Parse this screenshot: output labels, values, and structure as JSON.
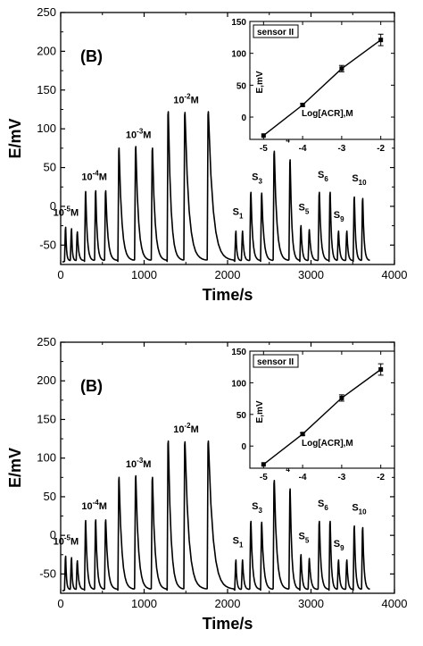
{
  "chart_data": [
    {
      "type": "line",
      "panel_label": "(B)",
      "xlabel": "Time/s",
      "ylabel": "E/mV",
      "xlim": [
        0,
        4000
      ],
      "ylim": [
        -75,
        250
      ],
      "xticks": [
        "0",
        "1000",
        "2000",
        "3000",
        "4000"
      ],
      "yticks": [
        "-50",
        "0",
        "50",
        "100",
        "150",
        "200",
        "250"
      ],
      "series": [
        {
          "peaks": [
            {
              "t": 60,
              "v": -27
            },
            {
              "t": 130,
              "v": -29
            },
            {
              "t": 200,
              "v": -33
            },
            {
              "t": 300,
              "v": 19
            },
            {
              "t": 420,
              "v": 20
            },
            {
              "t": 540,
              "v": 20
            },
            {
              "t": 700,
              "v": 75
            },
            {
              "t": 900,
              "v": 77
            },
            {
              "t": 1100,
              "v": 75
            },
            {
              "t": 1290,
              "v": 122
            },
            {
              "t": 1490,
              "v": 121
            },
            {
              "t": 1770,
              "v": 122
            },
            {
              "t": 2100,
              "v": -32
            },
            {
              "t": 2180,
              "v": -32
            },
            {
              "t": 2280,
              "v": 18
            },
            {
              "t": 2410,
              "v": 17
            },
            {
              "t": 2560,
              "v": 71
            },
            {
              "t": 2750,
              "v": 60
            },
            {
              "t": 2880,
              "v": -25
            },
            {
              "t": 2980,
              "v": -30
            },
            {
              "t": 3100,
              "v": 18
            },
            {
              "t": 3230,
              "v": 18
            },
            {
              "t": 3330,
              "v": -32
            },
            {
              "t": 3430,
              "v": -32
            },
            {
              "t": 3520,
              "v": 12
            },
            {
              "t": 3620,
              "v": 10
            }
          ],
          "baseline": -70
        }
      ],
      "annotations": [
        {
          "text": "10",
          "sup": "-5",
          "suffix": "M",
          "t": -90,
          "v": -12
        },
        {
          "text": "10",
          "sup": "-4",
          "suffix": "M",
          "t": 250,
          "v": 34
        },
        {
          "text": "10",
          "sup": "-3",
          "suffix": "M",
          "t": 780,
          "v": 88
        },
        {
          "text": "10",
          "sup": "-2",
          "suffix": "M",
          "t": 1350,
          "v": 133
        },
        {
          "text": "S",
          "sub": "1",
          "t": 2060,
          "v": -11
        },
        {
          "text": "S",
          "sub": "3",
          "t": 2290,
          "v": 34
        },
        {
          "text": "S",
          "sub": "4",
          "t": 2620,
          "v": 87
        },
        {
          "text": "S",
          "sub": "5",
          "t": 2850,
          "v": -5
        },
        {
          "text": "S",
          "sub": "6",
          "t": 3080,
          "v": 37
        },
        {
          "text": "S",
          "sub": "9",
          "t": 3270,
          "v": -15
        },
        {
          "text": "S",
          "sub": "10",
          "t": 3490,
          "v": 32
        }
      ],
      "inset": {
        "title": "sensor II",
        "xlabel": "Log[ACR],M",
        "ylabel": "E,mV",
        "xlim": [
          -5.35,
          -1.65
        ],
        "ylim": [
          -35,
          150
        ],
        "xticks": [
          "-5",
          "-4",
          "-3",
          "-2"
        ],
        "yticks": [
          "0",
          "50",
          "100",
          "150"
        ],
        "x": [
          -5,
          -4,
          -3,
          -2
        ],
        "y": [
          -29,
          19,
          76,
          121
        ],
        "err": [
          0,
          2,
          5,
          9
        ]
      }
    },
    {
      "type": "line",
      "panel_label": "(B)",
      "xlabel": "Time/s",
      "ylabel": "E/mV",
      "xlim": [
        0,
        4000
      ],
      "ylim": [
        -75,
        250
      ],
      "xticks": [
        "0",
        "1000",
        "2000",
        "3000",
        "4000"
      ],
      "yticks": [
        "-50",
        "0",
        "50",
        "100",
        "150",
        "200",
        "250"
      ],
      "series": [
        {
          "peaks": [
            {
              "t": 60,
              "v": -27
            },
            {
              "t": 130,
              "v": -29
            },
            {
              "t": 200,
              "v": -33
            },
            {
              "t": 300,
              "v": 19
            },
            {
              "t": 420,
              "v": 20
            },
            {
              "t": 540,
              "v": 20
            },
            {
              "t": 700,
              "v": 75
            },
            {
              "t": 900,
              "v": 77
            },
            {
              "t": 1100,
              "v": 75
            },
            {
              "t": 1290,
              "v": 122
            },
            {
              "t": 1490,
              "v": 121
            },
            {
              "t": 1770,
              "v": 122
            },
            {
              "t": 2100,
              "v": -32
            },
            {
              "t": 2180,
              "v": -32
            },
            {
              "t": 2280,
              "v": 18
            },
            {
              "t": 2410,
              "v": 17
            },
            {
              "t": 2560,
              "v": 71
            },
            {
              "t": 2750,
              "v": 60
            },
            {
              "t": 2880,
              "v": -25
            },
            {
              "t": 2980,
              "v": -30
            },
            {
              "t": 3100,
              "v": 18
            },
            {
              "t": 3230,
              "v": 18
            },
            {
              "t": 3330,
              "v": -32
            },
            {
              "t": 3430,
              "v": -32
            },
            {
              "t": 3520,
              "v": 12
            },
            {
              "t": 3620,
              "v": 10
            }
          ],
          "baseline": -70
        }
      ],
      "annotations": [
        {
          "text": "10",
          "sup": "-5",
          "suffix": "M",
          "t": -90,
          "v": -12
        },
        {
          "text": "10",
          "sup": "-4",
          "suffix": "M",
          "t": 250,
          "v": 34
        },
        {
          "text": "10",
          "sup": "-3",
          "suffix": "M",
          "t": 780,
          "v": 88
        },
        {
          "text": "10",
          "sup": "-2",
          "suffix": "M",
          "t": 1350,
          "v": 133
        },
        {
          "text": "S",
          "sub": "1",
          "t": 2060,
          "v": -11
        },
        {
          "text": "S",
          "sub": "3",
          "t": 2290,
          "v": 34
        },
        {
          "text": "S",
          "sub": "4",
          "t": 2620,
          "v": 87
        },
        {
          "text": "S",
          "sub": "5",
          "t": 2850,
          "v": -5
        },
        {
          "text": "S",
          "sub": "6",
          "t": 3080,
          "v": 37
        },
        {
          "text": "S",
          "sub": "9",
          "t": 3270,
          "v": -15
        },
        {
          "text": "S",
          "sub": "10",
          "t": 3490,
          "v": 32
        }
      ],
      "inset": {
        "title": "sensor II",
        "xlabel": "Log[ACR],M",
        "ylabel": "E,mV",
        "xlim": [
          -5.35,
          -1.65
        ],
        "ylim": [
          -35,
          150
        ],
        "xticks": [
          "-5",
          "-4",
          "-3",
          "-2"
        ],
        "yticks": [
          "0",
          "50",
          "100",
          "150"
        ],
        "x": [
          -5,
          -4,
          -3,
          -2
        ],
        "y": [
          -29,
          19,
          76,
          121
        ],
        "err": [
          0,
          2,
          5,
          9
        ]
      }
    }
  ]
}
